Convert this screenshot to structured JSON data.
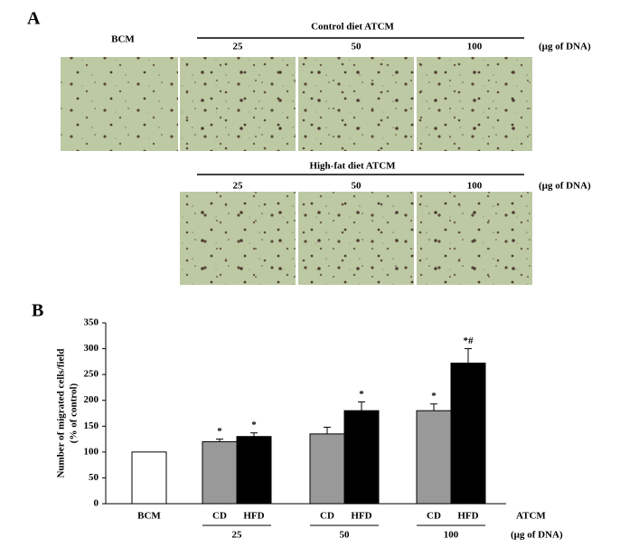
{
  "panel_a": {
    "label": "A",
    "control_label": "BCM",
    "rows": [
      {
        "title": "Control diet ATCM",
        "doses": [
          "25",
          "50",
          "100"
        ],
        "unit": "(µg of DNA)"
      },
      {
        "title": "High-fat diet ATCM",
        "doses": [
          "25",
          "50",
          "100"
        ],
        "unit": "(µg of DNA)"
      }
    ]
  },
  "panel_b": {
    "label": "B"
  },
  "chart_data": {
    "type": "bar",
    "ylabel": [
      "Number of migrated cells/field",
      "(% of control)"
    ],
    "categories": [
      "BCM",
      "25",
      "50",
      "100"
    ],
    "group_label": "ATCM",
    "xlabel": "(µg of DNA)",
    "series": [
      {
        "color": "#ffffff",
        "values": [
          100,
          null,
          null,
          null
        ]
      },
      {
        "name": "CD",
        "color": "#999999",
        "values": [
          null,
          120,
          135,
          180
        ],
        "errors": [
          null,
          5,
          13,
          13
        ],
        "annotations": [
          null,
          "*",
          null,
          "*"
        ]
      },
      {
        "name": "HFD",
        "color": "#000000",
        "values": [
          null,
          130,
          180,
          272
        ],
        "errors": [
          null,
          7,
          17,
          28
        ],
        "annotations": [
          null,
          "*",
          "*",
          "*#"
        ]
      }
    ],
    "ylim": [
      0,
      350
    ],
    "yticks": [
      0,
      50,
      100,
      150,
      200,
      250,
      300,
      350
    ]
  }
}
